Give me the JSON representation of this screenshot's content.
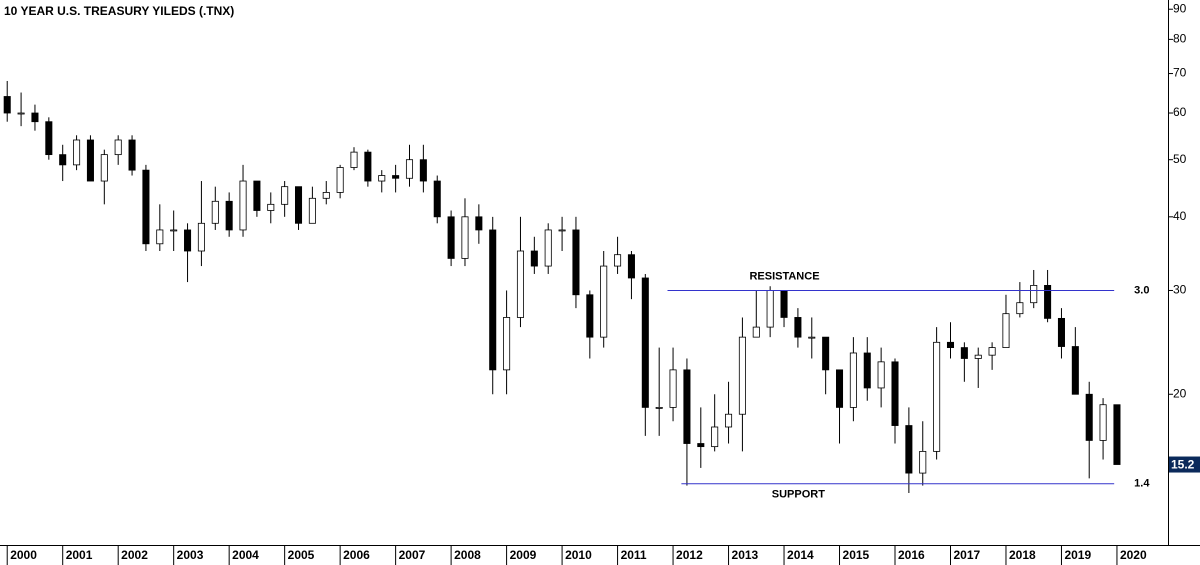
{
  "chart_data": {
    "type": "candlestick",
    "title": "10 YEAR U.S. TREASURY YILEDS (.TNX)",
    "x": [
      2000,
      2000.25,
      2000.5,
      2000.75,
      2001,
      2001.25,
      2001.5,
      2001.75,
      2002,
      2002.25,
      2002.5,
      2002.75,
      2003,
      2003.25,
      2003.5,
      2003.75,
      2004,
      2004.25,
      2004.5,
      2004.75,
      2005,
      2005.25,
      2005.5,
      2005.75,
      2006,
      2006.25,
      2006.5,
      2006.75,
      2007,
      2007.25,
      2007.5,
      2007.75,
      2008,
      2008.25,
      2008.5,
      2008.75,
      2009,
      2009.25,
      2009.5,
      2009.75,
      2010,
      2010.25,
      2010.5,
      2010.75,
      2011,
      2011.25,
      2011.5,
      2011.75,
      2012,
      2012.25,
      2012.5,
      2012.75,
      2013,
      2013.25,
      2013.5,
      2013.75,
      2014,
      2014.25,
      2014.5,
      2014.75,
      2015,
      2015.25,
      2015.5,
      2015.75,
      2016,
      2016.25,
      2016.5,
      2016.75,
      2017,
      2017.25,
      2017.5,
      2017.75,
      2018,
      2018.25,
      2018.5,
      2018.75,
      2019,
      2019.25,
      2019.5,
      2019.75,
      2020
    ],
    "open": [
      64,
      60,
      60,
      58,
      51,
      49,
      54,
      46,
      51,
      54,
      48,
      36,
      38,
      38,
      35,
      39,
      42.5,
      38,
      46,
      41,
      42,
      45,
      39,
      43,
      44,
      48.5,
      51.5,
      46,
      47,
      46.5,
      50,
      46,
      40,
      34,
      40,
      38,
      22,
      27,
      35,
      33,
      38,
      38,
      29.5,
      25,
      33,
      34.5,
      31.5,
      19,
      19,
      22,
      16.5,
      16.3,
      17.6,
      18.5,
      25,
      26,
      30,
      27,
      25,
      25,
      22,
      19,
      23.5,
      20.5,
      22.7,
      17.7,
      14.7,
      16,
      24.5,
      24,
      23,
      23.3,
      24,
      27.4,
      28.6,
      30.6,
      26.9,
      24.1,
      20,
      16.7,
      19.2
    ],
    "high": [
      68,
      65,
      62,
      59,
      53,
      55,
      55,
      52,
      55,
      55,
      49,
      42,
      41,
      39,
      46,
      45,
      44,
      49,
      46,
      44,
      46,
      45,
      45,
      46,
      49,
      52.5,
      52,
      48,
      49,
      53,
      53,
      47,
      41,
      43,
      42,
      40,
      30,
      40,
      37,
      39,
      40,
      40,
      30,
      35,
      37,
      35,
      32,
      24,
      24,
      23,
      19,
      20,
      21,
      27,
      30,
      30.5,
      30,
      28,
      27,
      25,
      22,
      25,
      25,
      24,
      23,
      19,
      18,
      26,
      26.5,
      24.5,
      24,
      24.5,
      29.5,
      31,
      32.5,
      32.5,
      28,
      26,
      21,
      19.7,
      19.2
    ],
    "low": [
      58,
      57,
      56,
      50,
      46,
      48,
      46,
      42,
      49,
      47,
      35,
      35,
      35,
      31,
      33,
      38,
      37,
      37,
      40,
      39,
      40,
      38,
      39,
      42,
      43,
      48,
      45,
      44,
      44,
      45,
      44,
      39,
      33,
      33,
      36,
      20,
      20,
      26,
      32,
      32,
      35,
      28,
      23,
      24,
      32,
      29,
      17,
      17,
      18,
      14,
      15,
      16,
      16.5,
      16,
      25,
      25,
      26,
      24,
      23,
      20,
      16.5,
      18,
      19.5,
      19,
      16.5,
      13.6,
      14,
      15.5,
      23,
      21,
      20.5,
      22,
      24,
      27,
      28,
      26.5,
      23,
      20,
      14.4,
      15.5,
      15.2
    ],
    "close": [
      60,
      60,
      58,
      51,
      49,
      54,
      46,
      51,
      54,
      48,
      36,
      38,
      38,
      35,
      39,
      42.5,
      38,
      46,
      41,
      42,
      45,
      39,
      43,
      44,
      48.5,
      51.5,
      46,
      47,
      46.5,
      50,
      46,
      40,
      34,
      40,
      38,
      22,
      27,
      35,
      33,
      38,
      38,
      29.5,
      25,
      33,
      34.5,
      31.5,
      19,
      19,
      22,
      16.5,
      16.3,
      17.6,
      18.5,
      25,
      26,
      30,
      27,
      25,
      25,
      22,
      19,
      23.5,
      20.5,
      22.7,
      17.7,
      14.7,
      16,
      24.5,
      24,
      23,
      23.3,
      24,
      27.4,
      28.6,
      30.6,
      26.9,
      24.1,
      20,
      16.7,
      19.2,
      15.2
    ],
    "up_color": "#ffffff",
    "down_color": "#000000",
    "outline_color": "#000000",
    "log_y": true,
    "ylim": [
      11.1,
      93.3
    ],
    "yticks": [
      20,
      30,
      40,
      50,
      60,
      70,
      80,
      90
    ],
    "xlim": [
      1999.87,
      2020.92
    ],
    "xticks": [
      2000,
      2001,
      2002,
      2003,
      2004,
      2005,
      2006,
      2007,
      2008,
      2009,
      2010,
      2011,
      2012,
      2013,
      2014,
      2015,
      2016,
      2017,
      2018,
      2019,
      2020
    ],
    "annotations": [
      {
        "text": "RESISTANCE",
        "text_color": "#e00000",
        "line_color": "#3333cc",
        "level": {
          "value": 30,
          "label": "3.0"
        },
        "from": 2011.9,
        "to": 2019.95
      },
      {
        "text": "SUPPORT",
        "text_color": "#149414",
        "line_color": "#3333cc",
        "level": {
          "value": 14.1,
          "label": "1.4"
        },
        "from": 2012.15,
        "to": 2019.95
      }
    ]
  }
}
